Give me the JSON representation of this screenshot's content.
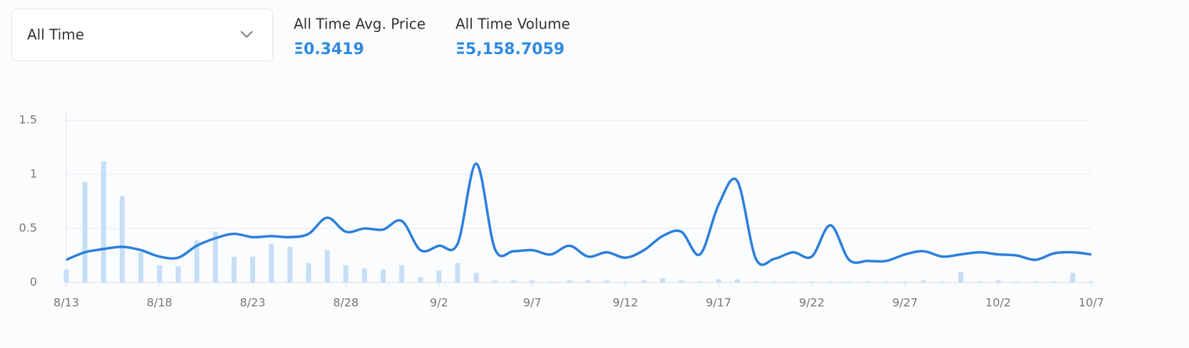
{
  "dropdown": {
    "label": "All Time"
  },
  "stats": [
    {
      "label": "All Time Avg. Price",
      "value": "Ξ0.3419"
    },
    {
      "label": "All Time Volume",
      "value": "Ξ5,158.7059"
    }
  ],
  "chart_data": {
    "type": "line",
    "categories": [
      "8/13",
      null,
      null,
      null,
      null,
      "8/18",
      null,
      null,
      null,
      null,
      "8/23",
      null,
      null,
      null,
      null,
      "8/28",
      null,
      null,
      null,
      null,
      "9/2",
      null,
      null,
      null,
      null,
      "9/7",
      null,
      null,
      null,
      null,
      "9/12",
      null,
      null,
      null,
      null,
      "9/17",
      null,
      null,
      null,
      null,
      "9/22",
      null,
      null,
      null,
      null,
      "9/27",
      null,
      null,
      null,
      null,
      "10/2",
      null,
      null,
      null,
      null,
      "10/7"
    ],
    "series": [
      {
        "type": "line",
        "color": "#2a7fdb",
        "values": [
          0.21,
          0.28,
          0.31,
          0.33,
          0.3,
          0.24,
          0.23,
          0.34,
          0.41,
          0.45,
          0.42,
          0.43,
          0.42,
          0.45,
          0.6,
          0.47,
          0.5,
          0.49,
          0.57,
          0.3,
          0.34,
          0.36,
          1.1,
          0.31,
          0.29,
          0.3,
          0.26,
          0.34,
          0.24,
          0.28,
          0.23,
          0.3,
          0.43,
          0.47,
          0.26,
          0.72,
          0.94,
          0.22,
          0.22,
          0.28,
          0.24,
          0.53,
          0.21,
          0.2,
          0.2,
          0.26,
          0.29,
          0.24,
          0.26,
          0.28,
          0.26,
          0.25,
          0.21,
          0.27,
          0.28,
          0.26
        ]
      },
      {
        "type": "bar",
        "color": "#c6dff7",
        "values": [
          0.12,
          0.93,
          1.12,
          0.8,
          0.28,
          0.16,
          0.15,
          0.39,
          0.47,
          0.24,
          0.24,
          0.36,
          0.33,
          0.18,
          0.3,
          0.16,
          0.13,
          0.12,
          0.16,
          0.05,
          0.11,
          0.18,
          0.09,
          0.02,
          0.02,
          0.02,
          0.01,
          0.02,
          0.02,
          0.02,
          0.01,
          0.02,
          0.04,
          0.02,
          0.01,
          0.03,
          0.03,
          0.01,
          0.01,
          0.01,
          0.01,
          0.01,
          0.01,
          0.01,
          0.01,
          0.01,
          0.02,
          0.01,
          0.1,
          0.01,
          0.02,
          0.01,
          0.01,
          0.01,
          0.09,
          0.01
        ]
      }
    ],
    "ylim": [
      0,
      1.6
    ],
    "yticks": [
      0,
      0.5,
      1,
      1.5
    ],
    "grid": true
  }
}
